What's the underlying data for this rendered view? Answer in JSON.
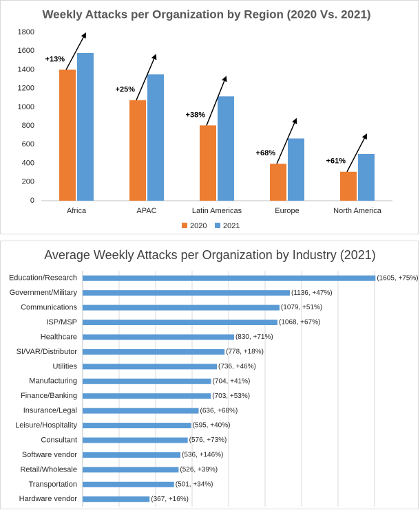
{
  "chart_data": [
    {
      "type": "bar",
      "title": "Weekly Attacks per Organization by Region (2020 Vs. 2021)",
      "categories": [
        "Africa",
        "APAC",
        "Latin Americas",
        "Europe",
        "North America"
      ],
      "series": [
        {
          "name": "2020",
          "color": "#ed7d31",
          "values": [
            1400,
            1075,
            805,
            395,
            310
          ]
        },
        {
          "name": "2021",
          "color": "#5b9bd5",
          "values": [
            1580,
            1350,
            1115,
            665,
            500
          ]
        }
      ],
      "annotations": [
        "+13%",
        "+25%",
        "+38%",
        "+68%",
        "+61%"
      ],
      "ylim": [
        0,
        1800
      ],
      "yticks": [
        0,
        200,
        400,
        600,
        800,
        1000,
        1200,
        1400,
        1600,
        1800
      ],
      "grid": false,
      "legend": "bottom"
    },
    {
      "type": "barh",
      "title": "Average Weekly Attacks per Organization by Industry (2021)",
      "categories": [
        "Education/Research",
        "Government/Military",
        "Communications",
        "ISP/MSP",
        "Healthcare",
        "SI/VAR/Distributor",
        "Utilities",
        "Manufacturing",
        "Finance/Banking",
        "Insurance/Legal",
        "Leisure/Hospitality",
        "Consultant",
        "Software vendor",
        "Retail/Wholesale",
        "Transportation",
        "Hardware vendor"
      ],
      "values": [
        1605,
        1136,
        1079,
        1068,
        830,
        778,
        736,
        704,
        703,
        636,
        595,
        576,
        536,
        526,
        501,
        367
      ],
      "value_labels": [
        "(1605, +75%)",
        "(1136, +47%)",
        "(1079, +51%)",
        "(1068, +67%)",
        "(830, +71%)",
        "(778, +18%)",
        "(736, +46%)",
        "(704, +41%)",
        "(703, +53%)",
        "(636, +68%)",
        "(595, +40%)",
        "(576, +73%)",
        "(536, +146%)",
        "(526, +39%)",
        "(501, +34%)",
        "(367, +16%)"
      ],
      "color": "#5b9bd5",
      "xlim": [
        0,
        1800
      ],
      "grid": true
    }
  ]
}
